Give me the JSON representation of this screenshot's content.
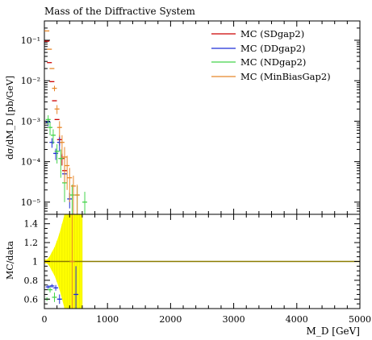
{
  "chart_data": [
    {
      "type": "scatter",
      "title": "Mass of the Diffractive System",
      "ylabel": "dσ/dM_D [pb/GeV]",
      "xlim": [
        0,
        5000
      ],
      "ylim": [
        5e-06,
        0.3
      ],
      "yscale": "log",
      "y_ticks": [
        {
          "value": 1e-05,
          "label": "10⁻⁵"
        },
        {
          "value": 0.0001,
          "label": "10⁻⁴"
        },
        {
          "value": 0.001,
          "label": "10⁻³"
        },
        {
          "value": 0.01,
          "label": "10⁻²"
        },
        {
          "value": 0.1,
          "label": "10⁻¹"
        }
      ],
      "legend": {
        "placement": "top-right"
      },
      "series": [
        {
          "name": "MC (SDgap2)",
          "color": "#cc0000",
          "points": [
            [
              40,
              0.095,
              0
            ],
            [
              80,
              0.028,
              0
            ],
            [
              120,
              0.0095,
              0
            ],
            [
              160,
              0.0032,
              0
            ],
            [
              200,
              0.0011,
              0
            ],
            [
              240,
              0.00035,
              0.0001
            ],
            [
              280,
              0.00012,
              4e-05
            ],
            [
              320,
              6e-05,
              2e-05
            ]
          ]
        },
        {
          "name": "MC (DDgap2)",
          "color": "#1f2fd6",
          "points": [
            [
              60,
              0.00095,
              0.0002
            ],
            [
              120,
              0.0003,
              8e-05
            ],
            [
              180,
              0.00016,
              5e-05
            ],
            [
              240,
              0.0003,
              0.00012
            ],
            [
              320,
              5e-05,
              2e-05
            ],
            [
              400,
              1.2e-05,
              5e-06
            ]
          ]
        },
        {
          "name": "MC (NDgap2)",
          "color": "#44d44a",
          "points": [
            [
              60,
              0.0011,
              0.0003
            ],
            [
              90,
              0.0007,
              0.00025
            ],
            [
              140,
              0.00045,
              0.00018
            ],
            [
              200,
              0.00018,
              9e-05
            ],
            [
              260,
              0.00012,
              8e-05
            ],
            [
              320,
              3e-05,
              2e-05
            ],
            [
              440,
              1.5e-05,
              1.2e-05
            ],
            [
              520,
              1.5e-05,
              1e-05
            ],
            [
              640,
              1e-05,
              8e-06
            ]
          ]
        },
        {
          "name": "MC (MinBiasGap2)",
          "color": "#e8882a",
          "points": [
            [
              40,
              0.17,
              0
            ],
            [
              80,
              0.06,
              0
            ],
            [
              120,
              0.02,
              0
            ],
            [
              160,
              0.0065,
              0.001
            ],
            [
              200,
              0.002,
              0.0005
            ],
            [
              240,
              0.0007,
              0.0003
            ],
            [
              280,
              0.0003,
              0.00015
            ],
            [
              320,
              0.00013,
              0.0001
            ],
            [
              360,
              8e-05,
              6e-05
            ],
            [
              400,
              4e-05,
              3e-05
            ],
            [
              460,
              2.5e-05,
              2e-05
            ],
            [
              520,
              1.5e-05,
              1.2e-05
            ]
          ]
        }
      ]
    },
    {
      "type": "scatter",
      "ylabel": "MC/data",
      "xlabel": "M_D [GeV]",
      "xlim": [
        0,
        5000
      ],
      "ylim": [
        0.5,
        1.5
      ],
      "y_ticks": [
        {
          "value": 0.6,
          "label": "0.6"
        },
        {
          "value": 0.8,
          "label": "0.8"
        },
        {
          "value": 1,
          "label": "1"
        },
        {
          "value": 1.2,
          "label": "1.2"
        },
        {
          "value": 1.4,
          "label": "1.4"
        }
      ],
      "x_ticks": [
        {
          "value": 0,
          "label": "0"
        },
        {
          "value": 1000,
          "label": "1000"
        },
        {
          "value": 2000,
          "label": "2000"
        },
        {
          "value": 3000,
          "label": "3000"
        },
        {
          "value": 4000,
          "label": "4000"
        },
        {
          "value": 5000,
          "label": "5000"
        }
      ],
      "reference_line": {
        "value": 1,
        "color": "#8a7c00"
      },
      "uncertainty_band": {
        "color": "#ffff00",
        "x": [
          0,
          40,
          80,
          120,
          160,
          200,
          240,
          280,
          320,
          360,
          400,
          440,
          480,
          520,
          560,
          600
        ],
        "half_width": [
          0.02,
          0.02,
          0.05,
          0.1,
          0.15,
          0.22,
          0.3,
          0.4,
          0.5,
          0.6,
          0.6,
          0.6,
          0.6,
          0.6,
          0.6,
          0.6
        ]
      },
      "ratio_points": [
        {
          "series": "MC (SDgap2)",
          "color": "#cc0000",
          "points": [
            [
              40,
              1.0,
              0
            ]
          ]
        },
        {
          "series": "MC (DDgap2)",
          "color": "#1f2fd6",
          "points": [
            [
              60,
              0.73,
              0.02
            ],
            [
              120,
              0.74,
              0.02
            ],
            [
              180,
              0.72,
              0.03
            ],
            [
              240,
              0.6,
              0.05
            ],
            [
              500,
              0.65,
              0.3
            ]
          ]
        },
        {
          "series": "MC (NDgap2)",
          "color": "#44d44a",
          "points": [
            [
              40,
              0.6,
              0.02
            ],
            [
              90,
              0.7,
              0.03
            ],
            [
              160,
              0.62,
              0.05
            ]
          ]
        },
        {
          "series": "MC (MinBiasGap2)",
          "color": "#e8882a",
          "points": [
            [
              440,
              1.0,
              0.5
            ]
          ]
        }
      ]
    }
  ]
}
